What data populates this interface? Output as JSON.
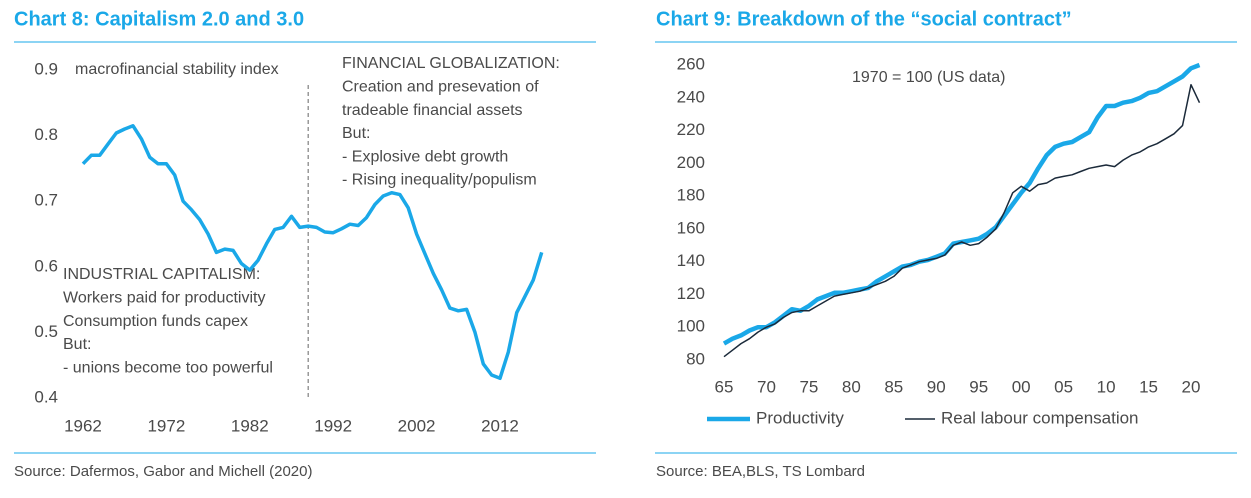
{
  "chart_data": [
    {
      "type": "line",
      "title": "Chart 8: Capitalism 2.0 and 3.0",
      "source": "Source: Dafermos, Gabor and Michell (2020)",
      "title_color": "#1aa8e8",
      "grid": false,
      "annotations": [
        [
          "macrofinancial stability index"
        ],
        [
          "FINANCIAL GLOBALIZATION:",
          "Creation and presevation of",
          "tradeable financial assets",
          "But:",
          "- Explosive debt growth",
          "- Rising inequality/populism"
        ],
        [
          "INDUSTRIAL CAPITALISM:",
          "Workers paid for productivity",
          "Consumption funds capex",
          "But:",
          "- unions become too powerful"
        ]
      ],
      "vline": 1989,
      "x": [
        1962,
        1963,
        1964,
        1965,
        1966,
        1967,
        1968,
        1969,
        1970,
        1971,
        1972,
        1973,
        1974,
        1975,
        1976,
        1977,
        1978,
        1979,
        1980,
        1981,
        1982,
        1983,
        1984,
        1985,
        1986,
        1987,
        1988,
        1989,
        1990,
        1991,
        1992,
        1993,
        1994,
        1995,
        1996,
        1997,
        1998,
        1999,
        2000,
        2001,
        2002,
        2003,
        2004,
        2005,
        2006,
        2007,
        2008,
        2009,
        2010,
        2011,
        2012,
        2013,
        2014,
        2015,
        2016,
        2017
      ],
      "series": [
        {
          "color": "#1aa8e8",
          "values": [
            0.757,
            0.77,
            0.77,
            0.787,
            0.804,
            0.81,
            0.815,
            0.795,
            0.767,
            0.757,
            0.757,
            0.74,
            0.7,
            0.687,
            0.672,
            0.65,
            0.622,
            0.627,
            0.625,
            0.605,
            0.595,
            0.61,
            0.635,
            0.657,
            0.66,
            0.677,
            0.66,
            0.662,
            0.66,
            0.653,
            0.652,
            0.658,
            0.665,
            0.663,
            0.675,
            0.695,
            0.708,
            0.713,
            0.71,
            0.69,
            0.65,
            0.62,
            0.59,
            0.565,
            0.537,
            0.533,
            0.535,
            0.5,
            0.452,
            0.435,
            0.43,
            0.47,
            0.53,
            0.555,
            0.58,
            0.622
          ]
        }
      ],
      "xlim": [
        1960,
        2020
      ],
      "xticks": [
        1962,
        1972,
        1982,
        1992,
        2002,
        2012
      ],
      "ylim": [
        0.4,
        0.9
      ],
      "yticks": [
        0.4,
        0.5,
        0.6,
        0.7,
        0.8,
        0.9
      ]
    },
    {
      "type": "line",
      "title": "Chart 9: Breakdown of the “social contract”",
      "source": "Source: BEA,BLS, TS Lombard",
      "title_color": "#1aa8e8",
      "grid": false,
      "legend": "bottom",
      "annotations": [
        [
          "1970 = 100 (US data)"
        ]
      ],
      "x": [
        1965,
        1966,
        1967,
        1968,
        1969,
        1970,
        1971,
        1972,
        1973,
        1974,
        1975,
        1976,
        1977,
        1978,
        1979,
        1980,
        1981,
        1982,
        1983,
        1984,
        1985,
        1986,
        1987,
        1988,
        1989,
        1990,
        1991,
        1992,
        1993,
        1994,
        1995,
        1996,
        1997,
        1998,
        1999,
        2000,
        2001,
        2002,
        2003,
        2004,
        2005,
        2006,
        2007,
        2008,
        2009,
        2010,
        2011,
        2012,
        2013,
        2014,
        2015,
        2016,
        2017,
        2018,
        2019,
        2020,
        2021
      ],
      "series": [
        {
          "name": "Productivity",
          "color": "#1aa8e8",
          "values": [
            90,
            93,
            95,
            98,
            100,
            100,
            103,
            107,
            111,
            110,
            113,
            117,
            119,
            121,
            121,
            122,
            123,
            124,
            128,
            131,
            134,
            137,
            138,
            140,
            141,
            143,
            145,
            151,
            152,
            153,
            154,
            157,
            161,
            168,
            175,
            182,
            188,
            197,
            205,
            210,
            212,
            213,
            216,
            219,
            228,
            235,
            235,
            237,
            238,
            240,
            243,
            244,
            247,
            250,
            253,
            258,
            260
          ]
        },
        {
          "name": "Real labour compensation",
          "color": "#1b2a3a",
          "values": [
            82,
            86,
            90,
            93,
            97,
            100,
            102,
            106,
            109,
            110,
            110,
            113,
            116,
            119,
            120,
            121,
            122,
            124,
            126,
            128,
            131,
            136,
            138,
            140,
            141,
            142,
            144,
            150,
            152,
            150,
            151,
            155,
            160,
            170,
            182,
            186,
            183,
            187,
            188,
            191,
            192,
            193,
            195,
            197,
            198,
            199,
            198,
            202,
            205,
            207,
            210,
            212,
            215,
            218,
            223,
            248,
            237
          ]
        }
      ],
      "xlim": [
        1964,
        2021
      ],
      "xticks": [
        {
          "value": 1965,
          "label": "65"
        },
        {
          "value": 1970,
          "label": "70"
        },
        {
          "value": 1975,
          "label": "75"
        },
        {
          "value": 1980,
          "label": "80"
        },
        {
          "value": 1985,
          "label": "85"
        },
        {
          "value": 1990,
          "label": "90"
        },
        {
          "value": 1995,
          "label": "95"
        },
        {
          "value": 2000,
          "label": "00"
        },
        {
          "value": 2005,
          "label": "05"
        },
        {
          "value": 2010,
          "label": "10"
        },
        {
          "value": 2015,
          "label": "15"
        },
        {
          "value": 2020,
          "label": "20"
        }
      ],
      "ylim": [
        80,
        260
      ],
      "yticks": [
        80,
        100,
        120,
        140,
        160,
        180,
        200,
        220,
        240,
        260
      ]
    }
  ]
}
